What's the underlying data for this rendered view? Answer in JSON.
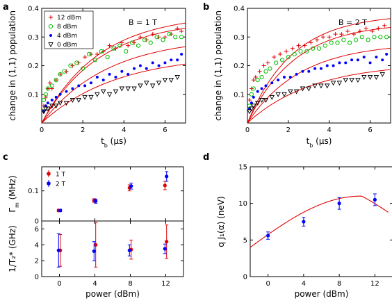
{
  "figure": {
    "labels": {
      "a": "a",
      "b": "b",
      "c": "c",
      "d": "d"
    }
  },
  "chart_data": [
    {
      "panel": "a",
      "type": "scatter",
      "annotation": "B = 1 T",
      "xlabel": "t_b (μs)",
      "ylabel": "change in (1,1) population",
      "xlim": [
        0,
        7
      ],
      "ylim": [
        0,
        0.4
      ],
      "xticks": [
        0,
        2,
        4,
        6
      ],
      "yticks": [
        0.1,
        0.2,
        0.3,
        0.4
      ],
      "legend": "top-left",
      "series": [
        {
          "name": "12 dBm",
          "marker": "plus",
          "color": "#e00000",
          "x": [
            0.1,
            0.2,
            0.3,
            0.4,
            0.5,
            0.7,
            0.9,
            1.2,
            1.5,
            1.8,
            2.1,
            2.4,
            2.7,
            3.0,
            3.3,
            3.6,
            3.9,
            4.2,
            4.5,
            4.8,
            5.1,
            5.4,
            5.7,
            6.0,
            6.3,
            6.6,
            6.8
          ],
          "y": [
            0.06,
            0.09,
            0.12,
            0.14,
            0.12,
            0.15,
            0.17,
            0.18,
            0.2,
            0.21,
            0.23,
            0.24,
            0.24,
            0.25,
            0.27,
            0.26,
            0.28,
            0.27,
            0.28,
            0.3,
            0.29,
            0.31,
            0.3,
            0.3,
            0.31,
            0.33,
            0.32
          ]
        },
        {
          "name": "8 dBm",
          "marker": "circle",
          "color": "#00c000",
          "x": [
            0.1,
            0.2,
            0.3,
            0.5,
            0.7,
            0.9,
            1.1,
            1.4,
            1.7,
            2.0,
            2.3,
            2.6,
            2.9,
            3.2,
            3.5,
            3.8,
            4.1,
            4.4,
            4.7,
            5.0,
            5.3,
            5.6,
            5.9,
            6.2,
            6.5,
            6.8
          ],
          "y": [
            0.08,
            0.1,
            0.12,
            0.13,
            0.15,
            0.17,
            0.18,
            0.2,
            0.21,
            0.19,
            0.24,
            0.22,
            0.25,
            0.23,
            0.26,
            0.27,
            0.25,
            0.28,
            0.27,
            0.29,
            0.28,
            0.3,
            0.29,
            0.31,
            0.3,
            0.3
          ]
        },
        {
          "name": "4 dBm",
          "marker": "dot",
          "color": "#0000ff",
          "x": [
            0.1,
            0.2,
            0.3,
            0.5,
            0.7,
            0.9,
            1.2,
            1.5,
            1.8,
            2.1,
            2.4,
            2.7,
            3.0,
            3.3,
            3.6,
            3.9,
            4.2,
            4.5,
            4.8,
            5.1,
            5.4,
            5.7,
            6.0,
            6.3,
            6.6,
            6.8
          ],
          "y": [
            0.04,
            0.06,
            0.07,
            0.08,
            0.09,
            0.1,
            0.11,
            0.12,
            0.13,
            0.13,
            0.14,
            0.16,
            0.15,
            0.17,
            0.16,
            0.18,
            0.17,
            0.19,
            0.2,
            0.19,
            0.21,
            0.2,
            0.21,
            0.22,
            0.22,
            0.24
          ]
        },
        {
          "name": "0 dBm",
          "marker": "triangle",
          "color": "#000000",
          "x": [
            0.1,
            0.2,
            0.3,
            0.5,
            0.7,
            0.9,
            1.2,
            1.5,
            1.8,
            2.1,
            2.4,
            2.7,
            3.0,
            3.3,
            3.6,
            3.9,
            4.2,
            4.5,
            4.8,
            5.1,
            5.4,
            5.7,
            6.0,
            6.3,
            6.6
          ],
          "y": [
            0.04,
            0.05,
            0.05,
            0.06,
            0.06,
            0.07,
            0.07,
            0.08,
            0.08,
            0.09,
            0.09,
            0.1,
            0.11,
            0.1,
            0.11,
            0.12,
            0.12,
            0.12,
            0.13,
            0.14,
            0.13,
            0.14,
            0.15,
            0.15,
            0.16
          ]
        }
      ],
      "fits": {
        "color": "#e00000",
        "x_end": 7,
        "tau": [
          2.8,
          2.8,
          3.2,
          3.6
        ],
        "amp": [
          0.38,
          0.36,
          0.3,
          0.24
        ]
      }
    },
    {
      "panel": "b",
      "type": "scatter",
      "annotation": "B = 2 T",
      "xlabel": "t_b (μs)",
      "ylabel": "change in (1,1) population",
      "xlim": [
        0,
        7
      ],
      "ylim": [
        0,
        0.4
      ],
      "xticks": [
        0,
        2,
        4,
        6
      ],
      "yticks": [
        0.1,
        0.2,
        0.3,
        0.4
      ],
      "series": [
        {
          "name": "12 dBm",
          "marker": "plus",
          "color": "#e00000",
          "x": [
            0.1,
            0.2,
            0.3,
            0.4,
            0.6,
            0.8,
            1.0,
            1.3,
            1.6,
            1.9,
            2.2,
            2.5,
            2.8,
            3.1,
            3.4,
            3.7,
            4.0,
            4.3,
            4.6,
            4.9,
            5.2,
            5.5,
            5.8,
            6.1,
            6.4,
            6.7
          ],
          "y": [
            0.08,
            0.12,
            0.15,
            0.16,
            0.18,
            0.2,
            0.21,
            0.23,
            0.24,
            0.25,
            0.26,
            0.27,
            0.27,
            0.28,
            0.29,
            0.3,
            0.3,
            0.31,
            0.31,
            0.32,
            0.31,
            0.32,
            0.33,
            0.32,
            0.33,
            0.34
          ]
        },
        {
          "name": "8 dBm",
          "marker": "circle",
          "color": "#00c000",
          "x": [
            0.1,
            0.2,
            0.3,
            0.5,
            0.7,
            0.9,
            1.1,
            1.4,
            1.7,
            2.0,
            2.3,
            2.6,
            2.9,
            3.2,
            3.5,
            3.8,
            4.1,
            4.4,
            4.7,
            5.0,
            5.3,
            5.6,
            5.9,
            6.2,
            6.5,
            6.8
          ],
          "y": [
            0.06,
            0.1,
            0.12,
            0.15,
            0.16,
            0.18,
            0.19,
            0.21,
            0.22,
            0.23,
            0.24,
            0.25,
            0.25,
            0.26,
            0.26,
            0.27,
            0.28,
            0.28,
            0.29,
            0.28,
            0.29,
            0.3,
            0.29,
            0.3,
            0.3,
            0.3
          ]
        },
        {
          "name": "4 dBm",
          "marker": "dot",
          "color": "#0000ff",
          "x": [
            0.1,
            0.2,
            0.3,
            0.5,
            0.7,
            0.9,
            1.2,
            1.5,
            1.8,
            2.1,
            2.4,
            2.7,
            3.0,
            3.3,
            3.6,
            3.9,
            4.2,
            4.5,
            4.8,
            5.1,
            5.4,
            5.7,
            6.0,
            6.3,
            6.6,
            6.8
          ],
          "y": [
            0.05,
            0.07,
            0.09,
            0.11,
            0.12,
            0.13,
            0.14,
            0.15,
            0.16,
            0.16,
            0.17,
            0.18,
            0.18,
            0.19,
            0.19,
            0.2,
            0.2,
            0.21,
            0.21,
            0.22,
            0.22,
            0.23,
            0.21,
            0.23,
            0.22,
            0.24
          ]
        },
        {
          "name": "0 dBm",
          "marker": "triangle",
          "color": "#000000",
          "x": [
            0.1,
            0.2,
            0.3,
            0.5,
            0.7,
            0.9,
            1.2,
            1.5,
            1.8,
            2.1,
            2.4,
            2.7,
            3.0,
            3.3,
            3.6,
            3.9,
            4.2,
            4.5,
            4.8,
            5.1,
            5.4,
            5.7,
            6.0,
            6.3,
            6.6
          ],
          "y": [
            0.04,
            0.05,
            0.06,
            0.07,
            0.08,
            0.08,
            0.09,
            0.1,
            0.1,
            0.11,
            0.11,
            0.12,
            0.12,
            0.13,
            0.13,
            0.13,
            0.14,
            0.14,
            0.15,
            0.15,
            0.15,
            0.16,
            0.16,
            0.16,
            0.17
          ]
        }
      ],
      "fits": {
        "color": "#e00000",
        "x_end": 7,
        "tau": [
          2.2,
          2.3,
          2.6,
          3.2
        ],
        "amp": [
          0.38,
          0.35,
          0.28,
          0.21
        ]
      }
    },
    {
      "panel": "c-top",
      "type": "scatter",
      "ylabel": "Γ_m (MHz)",
      "xlim": [
        -2,
        14
      ],
      "ylim": [
        0,
        0.18
      ],
      "xticks": [
        0,
        4,
        8,
        12
      ],
      "yticks": [
        0.0,
        0.1
      ],
      "legend": "top-left",
      "series": [
        {
          "name": "1 T",
          "color": "#e00000",
          "x": [
            0,
            4,
            8,
            12
          ],
          "y": [
            0.035,
            0.068,
            0.11,
            0.118
          ],
          "err": [
            0.004,
            0.006,
            0.01,
            0.014
          ]
        },
        {
          "name": "2 T",
          "color": "#0000ff",
          "x": [
            0,
            4,
            8,
            12
          ],
          "y": [
            0.035,
            0.066,
            0.116,
            0.148
          ],
          "err": [
            0.004,
            0.007,
            0.01,
            0.016
          ]
        }
      ]
    },
    {
      "panel": "c-bottom",
      "type": "scatter",
      "xlabel": "power (dBm)",
      "ylabel": "1/T₂* (GHz)",
      "xlim": [
        -2,
        14
      ],
      "ylim": [
        0,
        7
      ],
      "xticks": [
        0,
        4,
        8,
        12
      ],
      "xticklabels": [
        "0",
        "4",
        "8",
        "12"
      ],
      "yticks": [
        0,
        2,
        4,
        6
      ],
      "series": [
        {
          "name": "1 T",
          "color": "#e00000",
          "x": [
            0,
            4,
            8,
            12
          ],
          "y": [
            3.3,
            4.0,
            3.4,
            4.4
          ],
          "err": [
            2.0,
            2.8,
            1.2,
            2.1
          ]
        },
        {
          "name": "2 T",
          "color": "#0000ff",
          "x": [
            0,
            4,
            8,
            12
          ],
          "y": [
            3.3,
            3.2,
            3.3,
            3.5
          ],
          "err": [
            2.1,
            1.2,
            0.7,
            0.6
          ]
        }
      ]
    },
    {
      "panel": "d",
      "type": "scatter",
      "xlabel": "power (dBm)",
      "ylabel": "q J₁(α) (neV)",
      "xlim": [
        -2,
        14
      ],
      "ylim": [
        0,
        15
      ],
      "xticks": [
        0,
        4,
        8,
        12
      ],
      "xticklabels": [
        "0",
        "4",
        "8",
        "12"
      ],
      "yticks": [
        0,
        5,
        10,
        15
      ],
      "series": [
        {
          "color": "#0000ff",
          "x": [
            0,
            4,
            8,
            12
          ],
          "y": [
            5.6,
            7.5,
            10.0,
            10.5
          ],
          "err": [
            0.5,
            0.6,
            0.8,
            0.8
          ]
        }
      ],
      "fit": {
        "color": "#e00000",
        "x_start": -2,
        "x_end": 13.5,
        "peak_x": 10.5,
        "peak_y": 11.0,
        "base": 4.0
      }
    }
  ]
}
